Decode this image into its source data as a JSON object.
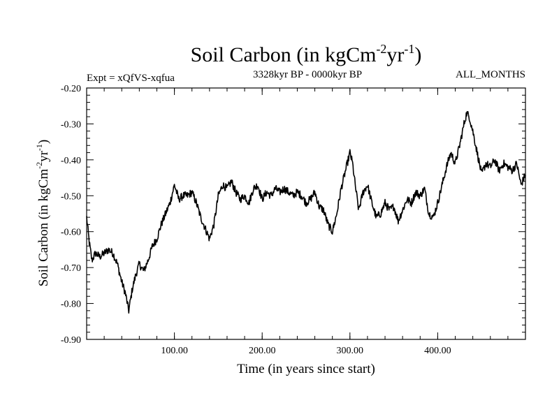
{
  "chart_data": {
    "type": "line",
    "title": "Soil Carbon (in kgCm",
    "title_sup1": "-2",
    "title_mid": "yr",
    "title_sup2": "-1",
    "title_end": ")",
    "subtitle_left": "Expt = xQfVS-xqfua",
    "subtitle_center": "3328kyr BP - 0000kyr BP",
    "subtitle_right": "ALL_MONTHS",
    "xlabel": "Time (in years since start)",
    "ylabel": "Soil Carbon (in kgCm",
    "ylabel_sup1": "-2",
    "ylabel_mid": "yr",
    "ylabel_sup2": "-1",
    "ylabel_end": ")",
    "xlim": [
      0,
      500
    ],
    "ylim": [
      -0.9,
      -0.2
    ],
    "x_major_ticks": [
      100,
      200,
      300,
      400
    ],
    "x_tick_labels": [
      "100.00",
      "200.00",
      "300.00",
      "400.00"
    ],
    "y_major_ticks": [
      -0.9,
      -0.8,
      -0.7,
      -0.6,
      -0.5,
      -0.4,
      -0.3,
      -0.2
    ],
    "y_tick_labels": [
      "-0.90",
      "-0.80",
      "-0.70",
      "-0.60",
      "-0.50",
      "-0.40",
      "-0.30",
      "-0.20"
    ],
    "line_color": "#000000",
    "series": [
      {
        "name": "Soil Carbon",
        "x": [
          0,
          3,
          6,
          10,
          15,
          20,
          25,
          30,
          35,
          40,
          44,
          48,
          52,
          56,
          60,
          65,
          70,
          75,
          80,
          85,
          90,
          95,
          100,
          105,
          110,
          115,
          120,
          125,
          130,
          135,
          140,
          145,
          150,
          155,
          160,
          165,
          170,
          175,
          180,
          185,
          190,
          195,
          200,
          205,
          210,
          215,
          220,
          225,
          230,
          235,
          240,
          245,
          250,
          255,
          260,
          265,
          270,
          275,
          280,
          285,
          290,
          295,
          300,
          303,
          306,
          310,
          315,
          320,
          325,
          330,
          335,
          340,
          345,
          350,
          355,
          360,
          365,
          370,
          375,
          380,
          385,
          390,
          395,
          400,
          405,
          410,
          415,
          420,
          425,
          430,
          433,
          436,
          440,
          445,
          450,
          455,
          460,
          465,
          470,
          475,
          480,
          485,
          490,
          495,
          500
        ],
        "y": [
          -0.56,
          -0.63,
          -0.68,
          -0.66,
          -0.67,
          -0.66,
          -0.65,
          -0.66,
          -0.69,
          -0.74,
          -0.77,
          -0.82,
          -0.76,
          -0.72,
          -0.69,
          -0.71,
          -0.68,
          -0.64,
          -0.62,
          -0.58,
          -0.55,
          -0.52,
          -0.47,
          -0.51,
          -0.5,
          -0.5,
          -0.49,
          -0.52,
          -0.56,
          -0.59,
          -0.62,
          -0.58,
          -0.5,
          -0.47,
          -0.48,
          -0.46,
          -0.49,
          -0.51,
          -0.5,
          -0.52,
          -0.48,
          -0.47,
          -0.51,
          -0.49,
          -0.5,
          -0.48,
          -0.49,
          -0.48,
          -0.49,
          -0.5,
          -0.49,
          -0.5,
          -0.52,
          -0.51,
          -0.49,
          -0.53,
          -0.54,
          -0.58,
          -0.6,
          -0.55,
          -0.48,
          -0.43,
          -0.38,
          -0.41,
          -0.47,
          -0.54,
          -0.49,
          -0.47,
          -0.52,
          -0.56,
          -0.55,
          -0.52,
          -0.54,
          -0.53,
          -0.57,
          -0.54,
          -0.51,
          -0.52,
          -0.49,
          -0.5,
          -0.48,
          -0.55,
          -0.56,
          -0.52,
          -0.47,
          -0.42,
          -0.38,
          -0.41,
          -0.36,
          -0.3,
          -0.27,
          -0.28,
          -0.32,
          -0.38,
          -0.44,
          -0.41,
          -0.42,
          -0.4,
          -0.43,
          -0.41,
          -0.42,
          -0.43,
          -0.41,
          -0.47,
          -0.44
        ]
      }
    ]
  }
}
